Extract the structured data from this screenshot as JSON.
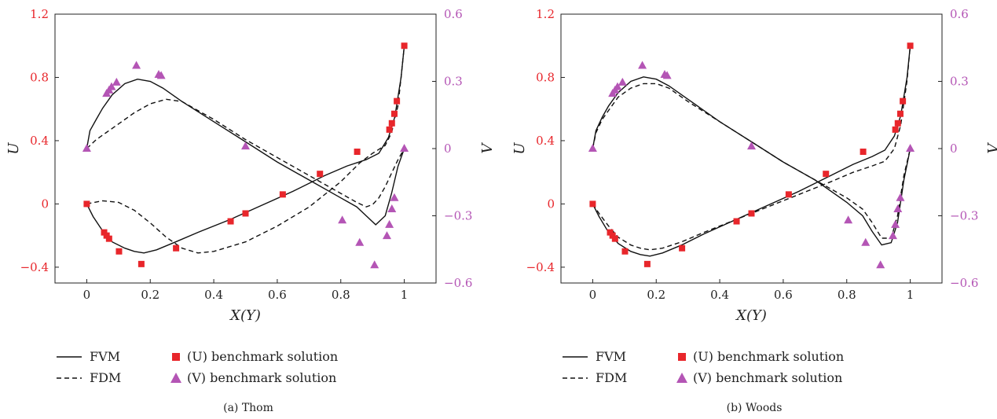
{
  "colors": {
    "u_marker": "#e8262b",
    "v_marker": "#b455b5",
    "line": "#111111"
  },
  "legend": {
    "fvm": "FVM",
    "fdm": "FDM",
    "u_bench": "(U) benchmark solution",
    "v_bench": "(V) benchmark solution"
  },
  "chart_data": [
    {
      "type": "line",
      "caption": "(a) Thom",
      "xlabel": "X(Y)",
      "ylabel_left": "U",
      "ylabel_right": "V",
      "xlim": [
        -0.1,
        1.1
      ],
      "ylim_left": [
        -0.5,
        1.2
      ],
      "ylim_right": [
        -0.6,
        0.6
      ],
      "xticks": [
        "0",
        "0.2",
        "0.4",
        "0.6",
        "0.8",
        "1"
      ],
      "yticks_left": [
        "−0.4",
        "0",
        "0.4",
        "0.8",
        "1.2"
      ],
      "yticks_right": [
        "−0.6",
        "−0.3",
        "0",
        "0.3",
        "0.6"
      ],
      "series": [
        {
          "name": "FVM",
          "axis": "left",
          "style": "solid",
          "x": [
            0,
            0.02,
            0.05,
            0.08,
            0.12,
            0.15,
            0.18,
            0.22,
            0.28,
            0.35,
            0.45,
            0.55,
            0.65,
            0.75,
            0.82,
            0.88,
            0.92,
            0.95,
            0.97,
            0.99,
            1.0
          ],
          "y": [
            0,
            -0.08,
            -0.17,
            -0.24,
            -0.28,
            -0.3,
            -0.31,
            -0.29,
            -0.24,
            -0.18,
            -0.1,
            -0.01,
            0.08,
            0.18,
            0.24,
            0.28,
            0.32,
            0.42,
            0.55,
            0.8,
            1.0
          ]
        },
        {
          "name": "FDM",
          "axis": "left",
          "style": "dashed",
          "x": [
            0,
            0.05,
            0.1,
            0.15,
            0.2,
            0.25,
            0.3,
            0.35,
            0.4,
            0.5,
            0.6,
            0.7,
            0.8,
            0.86,
            0.9,
            0.94,
            0.96,
            0.98,
            0.99,
            1.0
          ],
          "y": [
            0,
            0.02,
            0.01,
            -0.04,
            -0.12,
            -0.21,
            -0.28,
            -0.31,
            -0.3,
            -0.24,
            -0.14,
            -0.02,
            0.14,
            0.26,
            0.32,
            0.37,
            0.45,
            0.62,
            0.8,
            1.0
          ]
        },
        {
          "name": "FVM",
          "axis": "right",
          "style": "solid",
          "x": [
            0,
            0.01,
            0.03,
            0.05,
            0.08,
            0.12,
            0.16,
            0.2,
            0.24,
            0.3,
            0.4,
            0.5,
            0.6,
            0.7,
            0.8,
            0.85,
            0.88,
            0.91,
            0.94,
            0.96,
            0.98,
            1.0
          ],
          "y": [
            0,
            0.08,
            0.13,
            0.18,
            0.24,
            0.29,
            0.31,
            0.3,
            0.27,
            0.21,
            0.12,
            0.03,
            -0.06,
            -0.14,
            -0.22,
            -0.26,
            -0.3,
            -0.34,
            -0.3,
            -0.2,
            -0.08,
            0
          ]
        },
        {
          "name": "FDM",
          "axis": "right",
          "style": "dashed",
          "x": [
            0,
            0.03,
            0.06,
            0.1,
            0.15,
            0.2,
            0.25,
            0.3,
            0.4,
            0.5,
            0.6,
            0.7,
            0.75,
            0.8,
            0.85,
            0.88,
            0.9,
            0.92,
            0.94,
            0.96,
            0.98,
            1.0
          ],
          "y": [
            0,
            0.04,
            0.07,
            0.11,
            0.16,
            0.2,
            0.22,
            0.21,
            0.13,
            0.04,
            -0.04,
            -0.12,
            -0.16,
            -0.2,
            -0.24,
            -0.26,
            -0.25,
            -0.22,
            -0.17,
            -0.11,
            -0.05,
            0
          ]
        },
        {
          "name": "(U) benchmark solution",
          "axis": "left",
          "style": "square",
          "x": [
            0,
            0.0547,
            0.0625,
            0.0703,
            0.1016,
            0.1719,
            0.2813,
            0.4531,
            0.5,
            0.6172,
            0.7344,
            0.8516,
            0.9531,
            0.9609,
            0.9688,
            0.9766,
            1.0
          ],
          "y": [
            0,
            -0.18,
            -0.2,
            -0.22,
            -0.3,
            -0.38,
            -0.28,
            -0.11,
            -0.06,
            0.06,
            0.19,
            0.33,
            0.47,
            0.51,
            0.57,
            0.65,
            1.0
          ]
        },
        {
          "name": "(V) benchmark solution",
          "axis": "right",
          "style": "triangle",
          "x": [
            0,
            0.0625,
            0.0703,
            0.0781,
            0.0938,
            0.1563,
            0.2266,
            0.2344,
            0.5,
            0.8047,
            0.8594,
            0.9063,
            0.9453,
            0.9531,
            0.9609,
            0.9688,
            1.0
          ],
          "y": [
            0,
            0.245,
            0.26,
            0.275,
            0.295,
            0.37,
            0.33,
            0.325,
            0.01,
            -0.32,
            -0.42,
            -0.52,
            -0.39,
            -0.34,
            -0.27,
            -0.22,
            0
          ]
        }
      ]
    },
    {
      "type": "line",
      "caption": "(b) Woods",
      "xlabel": "X(Y)",
      "ylabel_left": "U",
      "ylabel_right": "V",
      "xlim": [
        -0.1,
        1.1
      ],
      "ylim_left": [
        -0.5,
        1.2
      ],
      "ylim_right": [
        -0.6,
        0.6
      ],
      "xticks": [
        "0",
        "0.2",
        "0.4",
        "0.6",
        "0.8",
        "1"
      ],
      "yticks_left": [
        "−0.4",
        "0",
        "0.4",
        "0.8",
        "1.2"
      ],
      "yticks_right": [
        "−0.6",
        "−0.3",
        "0",
        "0.3",
        "0.6"
      ],
      "series": [
        {
          "name": "FVM",
          "axis": "left",
          "style": "solid",
          "x": [
            0,
            0.02,
            0.05,
            0.08,
            0.12,
            0.15,
            0.18,
            0.22,
            0.28,
            0.35,
            0.45,
            0.55,
            0.65,
            0.75,
            0.82,
            0.88,
            0.92,
            0.95,
            0.97,
            0.99,
            1.0
          ],
          "y": [
            0,
            -0.08,
            -0.18,
            -0.25,
            -0.3,
            -0.32,
            -0.33,
            -0.31,
            -0.26,
            -0.19,
            -0.1,
            -0.01,
            0.08,
            0.18,
            0.25,
            0.3,
            0.34,
            0.43,
            0.56,
            0.8,
            1.0
          ]
        },
        {
          "name": "FDM",
          "axis": "left",
          "style": "dashed",
          "x": [
            0,
            0.02,
            0.05,
            0.08,
            0.12,
            0.15,
            0.18,
            0.22,
            0.28,
            0.35,
            0.45,
            0.55,
            0.65,
            0.75,
            0.82,
            0.88,
            0.92,
            0.95,
            0.97,
            0.99,
            1.0
          ],
          "y": [
            0,
            -0.06,
            -0.14,
            -0.21,
            -0.26,
            -0.28,
            -0.29,
            -0.28,
            -0.24,
            -0.18,
            -0.1,
            -0.02,
            0.06,
            0.14,
            0.2,
            0.24,
            0.27,
            0.35,
            0.5,
            0.78,
            1.0
          ]
        },
        {
          "name": "FVM",
          "axis": "right",
          "style": "solid",
          "x": [
            0,
            0.01,
            0.03,
            0.05,
            0.08,
            0.12,
            0.16,
            0.2,
            0.24,
            0.3,
            0.4,
            0.5,
            0.6,
            0.7,
            0.8,
            0.85,
            0.88,
            0.91,
            0.94,
            0.96,
            0.98,
            1.0
          ],
          "y": [
            0,
            0.08,
            0.14,
            0.19,
            0.25,
            0.3,
            0.32,
            0.31,
            0.28,
            0.22,
            0.12,
            0.03,
            -0.06,
            -0.14,
            -0.24,
            -0.3,
            -0.37,
            -0.43,
            -0.42,
            -0.33,
            -0.14,
            0
          ]
        },
        {
          "name": "FDM",
          "axis": "right",
          "style": "dashed",
          "x": [
            0,
            0.01,
            0.03,
            0.05,
            0.08,
            0.12,
            0.16,
            0.2,
            0.24,
            0.3,
            0.4,
            0.5,
            0.6,
            0.7,
            0.8,
            0.85,
            0.88,
            0.91,
            0.94,
            0.96,
            0.98,
            1.0
          ],
          "y": [
            0,
            0.07,
            0.13,
            0.17,
            0.23,
            0.27,
            0.29,
            0.29,
            0.27,
            0.21,
            0.12,
            0.03,
            -0.06,
            -0.14,
            -0.22,
            -0.27,
            -0.33,
            -0.4,
            -0.4,
            -0.3,
            -0.12,
            0
          ]
        },
        {
          "name": "(U) benchmark solution",
          "axis": "left",
          "style": "square",
          "x": [
            0,
            0.0547,
            0.0625,
            0.0703,
            0.1016,
            0.1719,
            0.2813,
            0.4531,
            0.5,
            0.6172,
            0.7344,
            0.8516,
            0.9531,
            0.9609,
            0.9688,
            0.9766,
            1.0
          ],
          "y": [
            0,
            -0.18,
            -0.2,
            -0.22,
            -0.3,
            -0.38,
            -0.28,
            -0.11,
            -0.06,
            0.06,
            0.19,
            0.33,
            0.47,
            0.51,
            0.57,
            0.65,
            1.0
          ]
        },
        {
          "name": "(V) benchmark solution",
          "axis": "right",
          "style": "triangle",
          "x": [
            0,
            0.0625,
            0.0703,
            0.0781,
            0.0938,
            0.1563,
            0.2266,
            0.2344,
            0.5,
            0.8047,
            0.8594,
            0.9063,
            0.9453,
            0.9531,
            0.9609,
            0.9688,
            1.0
          ],
          "y": [
            0,
            0.245,
            0.26,
            0.275,
            0.295,
            0.37,
            0.33,
            0.325,
            0.01,
            -0.32,
            -0.42,
            -0.52,
            -0.39,
            -0.34,
            -0.27,
            -0.22,
            0
          ]
        }
      ]
    }
  ]
}
